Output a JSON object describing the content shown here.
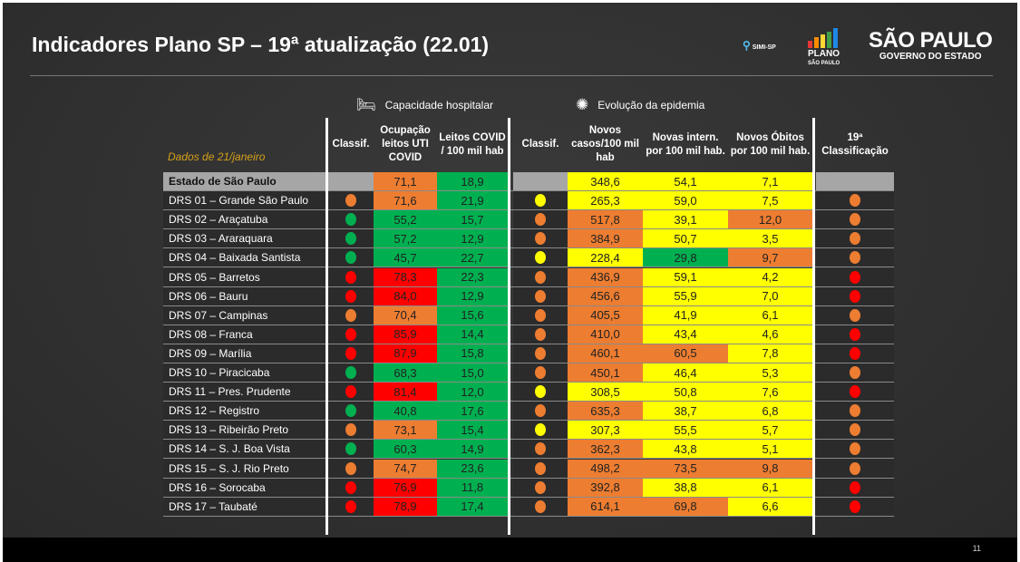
{
  "title": "Indicadores Plano SP – 19ª atualização (22.01)",
  "logos": {
    "simi": "SIMI-SP",
    "plano": "PLANO",
    "plano_sub": "SÃO PAULO",
    "sp": "SÃO PAULO",
    "sp_sub": "GOVERNO DO ESTADO"
  },
  "sections": {
    "hospital": "Capacidade hospitalar",
    "epidemia": "Evolução da epidemia"
  },
  "dados": "Dados de 21/janeiro",
  "headers": {
    "classif1": "Classif.",
    "ocupacao": "Ocupação leitos UTI COVID",
    "leitos": "Leitos COVID / 100 mil hab",
    "classif2": "Classif.",
    "casos": "Novos casos/100 mil hab",
    "intern": "Novas intern. por 100 mil hab.",
    "obitos": "Novos Óbitos por 100 mil hab.",
    "classif19": "19ª Classificação"
  },
  "colors": {
    "O": "#ed7d31",
    "G": "#00b050",
    "R": "#ff0000",
    "Y": "#ffff00"
  },
  "rows": [
    [
      "Estado de São Paulo",
      "",
      "71,1",
      "O",
      "18,9",
      "G",
      "",
      "348,6",
      "Y",
      "54,1",
      "Y",
      "7,1",
      "Y",
      ""
    ],
    [
      "DRS 01 – Grande São Paulo",
      "O",
      "71,6",
      "O",
      "21,9",
      "G",
      "Y",
      "265,3",
      "Y",
      "59,0",
      "Y",
      "7,5",
      "Y",
      "O"
    ],
    [
      "DRS 02 – Araçatuba",
      "G",
      "55,2",
      "G",
      "15,7",
      "G",
      "O",
      "517,8",
      "O",
      "39,1",
      "Y",
      "12,0",
      "O",
      "O"
    ],
    [
      "DRS 03 – Araraquara",
      "G",
      "57,2",
      "G",
      "12,9",
      "G",
      "O",
      "384,9",
      "O",
      "50,7",
      "Y",
      "3,5",
      "Y",
      "O"
    ],
    [
      "DRS 04 – Baixada Santista",
      "G",
      "45,7",
      "G",
      "22,7",
      "G",
      "Y",
      "228,4",
      "Y",
      "29,8",
      "G",
      "9,7",
      "O",
      "O"
    ],
    [
      "DRS 05 – Barretos",
      "R",
      "78,3",
      "R",
      "22,3",
      "G",
      "O",
      "436,9",
      "O",
      "59,1",
      "Y",
      "4,2",
      "Y",
      "R"
    ],
    [
      "DRS 06 – Bauru",
      "R",
      "84,0",
      "R",
      "12,9",
      "G",
      "O",
      "456,6",
      "O",
      "55,9",
      "Y",
      "7,0",
      "Y",
      "R"
    ],
    [
      "DRS 07 – Campinas",
      "O",
      "70,4",
      "O",
      "15,6",
      "G",
      "O",
      "405,5",
      "O",
      "41,9",
      "Y",
      "6,1",
      "Y",
      "O"
    ],
    [
      "DRS 08 – Franca",
      "R",
      "85,9",
      "R",
      "14,4",
      "G",
      "O",
      "410,0",
      "O",
      "43,4",
      "Y",
      "4,6",
      "Y",
      "R"
    ],
    [
      "DRS 09 – Marília",
      "R",
      "87,9",
      "R",
      "15,8",
      "G",
      "O",
      "460,1",
      "O",
      "60,5",
      "O",
      "7,8",
      "Y",
      "R"
    ],
    [
      "DRS 10 – Piracicaba",
      "G",
      "68,3",
      "G",
      "15,0",
      "G",
      "O",
      "450,1",
      "O",
      "46,4",
      "Y",
      "5,3",
      "Y",
      "O"
    ],
    [
      "DRS 11 – Pres. Prudente",
      "R",
      "81,4",
      "R",
      "12,0",
      "G",
      "Y",
      "308,5",
      "Y",
      "50,8",
      "Y",
      "7,6",
      "Y",
      "R"
    ],
    [
      "DRS 12 – Registro",
      "G",
      "40,8",
      "G",
      "17,6",
      "G",
      "O",
      "635,3",
      "O",
      "38,7",
      "Y",
      "6,8",
      "Y",
      "O"
    ],
    [
      "DRS 13 – Ribeirão Preto",
      "O",
      "73,1",
      "O",
      "15,4",
      "G",
      "Y",
      "307,3",
      "Y",
      "55,5",
      "Y",
      "5,7",
      "Y",
      "O"
    ],
    [
      "DRS 14 – S. J. Boa Vista",
      "G",
      "60,3",
      "G",
      "14,9",
      "G",
      "O",
      "362,3",
      "O",
      "43,8",
      "Y",
      "5,1",
      "Y",
      "O"
    ],
    [
      "DRS 15 – S. J. Rio Preto",
      "O",
      "74,7",
      "O",
      "23,6",
      "G",
      "O",
      "498,2",
      "O",
      "73,5",
      "O",
      "9,8",
      "O",
      "O"
    ],
    [
      "DRS 16 – Sorocaba",
      "R",
      "76,9",
      "R",
      "11,8",
      "G",
      "O",
      "392,8",
      "O",
      "38,8",
      "Y",
      "6,1",
      "Y",
      "R"
    ],
    [
      "DRS 17 – Taubaté",
      "R",
      "78,9",
      "R",
      "17,4",
      "G",
      "O",
      "614,1",
      "O",
      "69,8",
      "O",
      "6,6",
      "Y",
      "R"
    ]
  ],
  "page_number": "11"
}
